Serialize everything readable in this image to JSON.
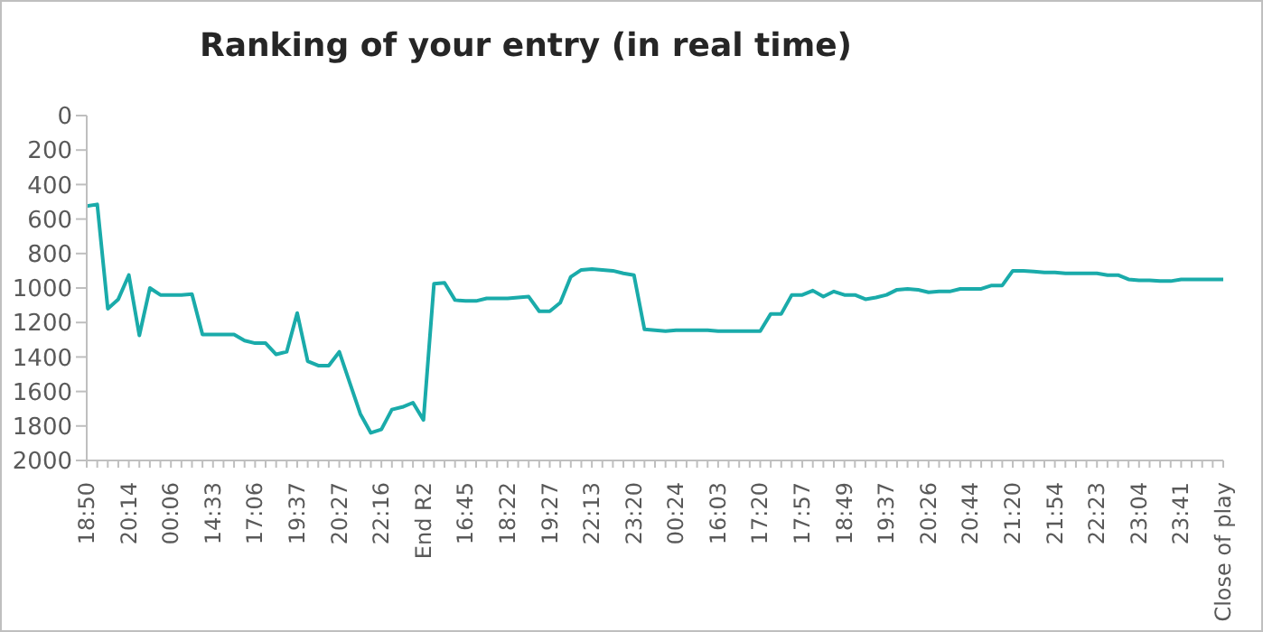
{
  "chart_data": {
    "type": "line",
    "title": "Ranking of your entry (in real time)",
    "categories": [
      "18:50",
      null,
      null,
      null,
      "20:14",
      null,
      null,
      null,
      "00:06",
      null,
      null,
      null,
      "14:33",
      null,
      null,
      null,
      "17:06",
      null,
      null,
      null,
      "19:37",
      null,
      null,
      null,
      "20:27",
      null,
      null,
      null,
      "22:16",
      null,
      null,
      null,
      "End R2",
      null,
      null,
      null,
      "16:45",
      null,
      null,
      null,
      "18:22",
      null,
      null,
      null,
      "19:27",
      null,
      null,
      null,
      "22:13",
      null,
      null,
      null,
      "23:20",
      null,
      null,
      null,
      "00:24",
      null,
      null,
      null,
      "16:03",
      null,
      null,
      null,
      "17:20",
      null,
      null,
      null,
      "17:57",
      null,
      null,
      null,
      "18:49",
      null,
      null,
      null,
      "19:37",
      null,
      null,
      null,
      "20:26",
      null,
      null,
      null,
      "20:44",
      null,
      null,
      null,
      "21:20",
      null,
      null,
      null,
      "21:54",
      null,
      null,
      null,
      "22:23",
      null,
      null,
      null,
      "23:04",
      null,
      null,
      null,
      "23:41",
      null,
      null,
      null,
      "Close of play"
    ],
    "series": [
      {
        "color": "#1aabaa",
        "values": [
          525,
          515,
          1120,
          1065,
          925,
          1275,
          1000,
          1040,
          1040,
          1040,
          1035,
          1270,
          1270,
          1270,
          1270,
          1305,
          1320,
          1320,
          1385,
          1370,
          1145,
          1425,
          1450,
          1450,
          1370,
          1550,
          1730,
          1840,
          1820,
          1705,
          1690,
          1665,
          1765,
          975,
          970,
          1070,
          1075,
          1075,
          1060,
          1060,
          1060,
          1055,
          1050,
          1135,
          1135,
          1085,
          935,
          895,
          890,
          895,
          900,
          915,
          925,
          1240,
          1245,
          1250,
          1245,
          1245,
          1245,
          1245,
          1250,
          1250,
          1250,
          1250,
          1250,
          1150,
          1150,
          1040,
          1040,
          1015,
          1050,
          1020,
          1040,
          1040,
          1065,
          1055,
          1040,
          1010,
          1005,
          1010,
          1025,
          1020,
          1020,
          1005,
          1005,
          1005,
          985,
          985,
          900,
          900,
          905,
          910,
          910,
          915,
          915,
          915,
          915,
          925,
          925,
          950,
          955,
          955,
          960,
          960,
          950,
          950,
          950,
          950,
          950
        ]
      }
    ],
    "ylim": [
      2000,
      0
    ],
    "yticks": [
      0,
      200,
      400,
      600,
      800,
      1000,
      1200,
      1400,
      1600,
      1800,
      2000
    ],
    "grid": false,
    "legend": false,
    "marker": "none",
    "line_style": "solid"
  }
}
